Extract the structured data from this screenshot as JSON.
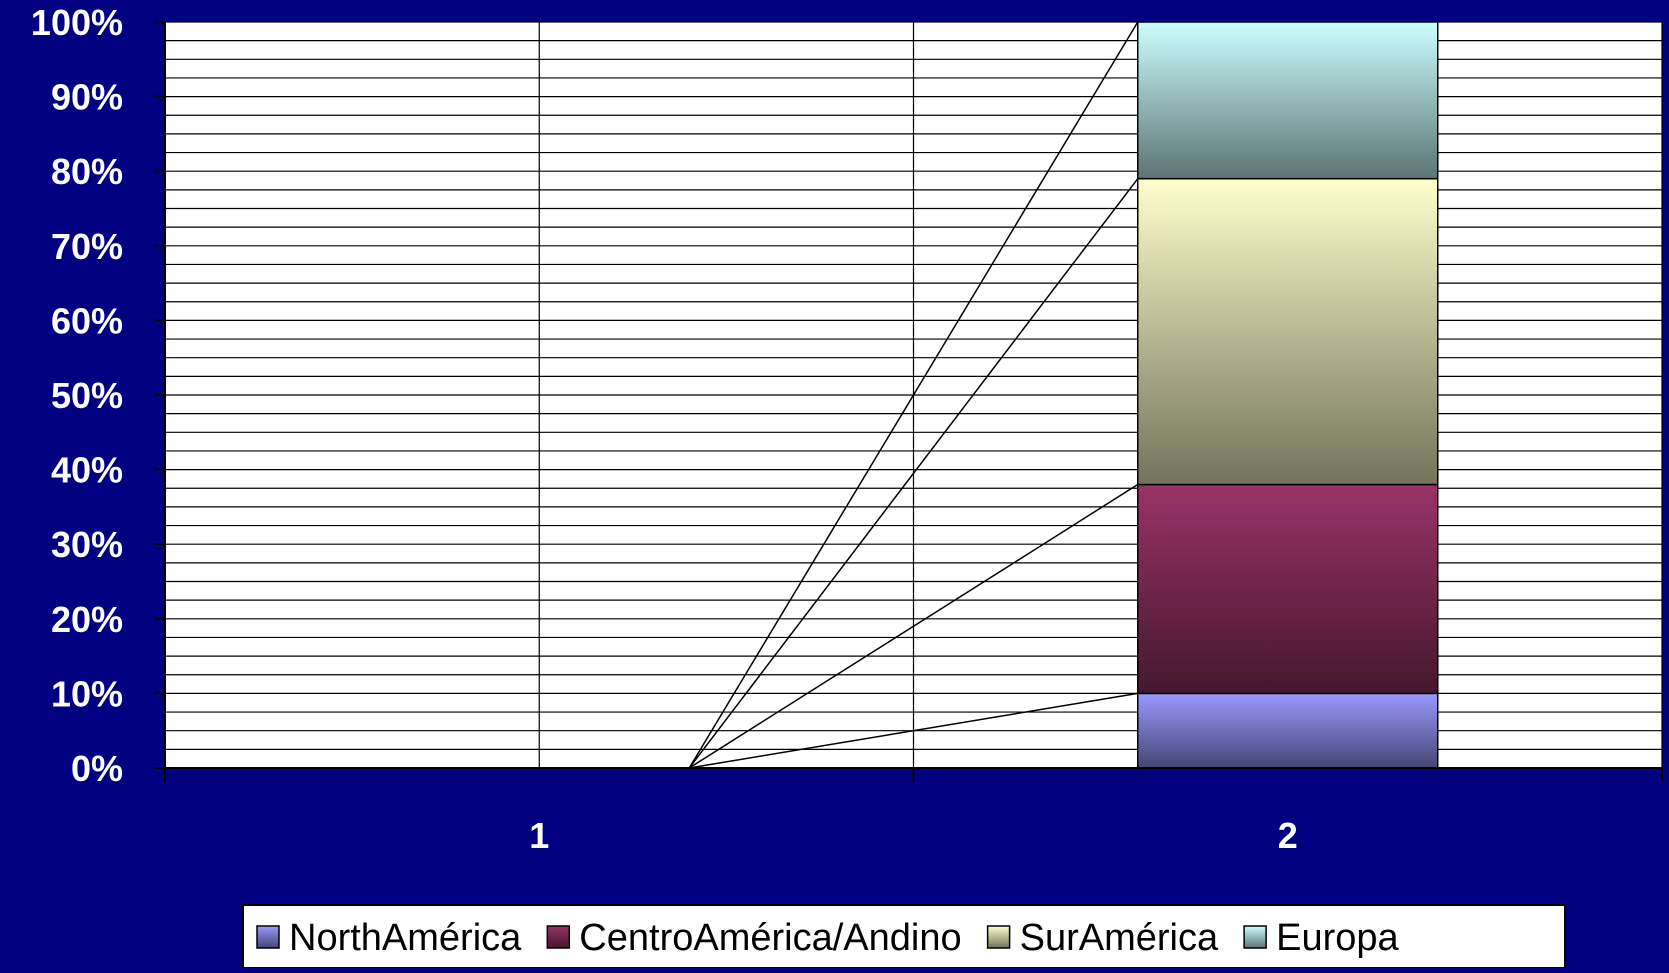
{
  "chart_data": {
    "type": "bar",
    "stacked": true,
    "percent_stacked": true,
    "categories": [
      "1",
      "2"
    ],
    "series": [
      {
        "name": "NorthAmérica",
        "values": [
          0,
          10
        ],
        "color": "#9999ff"
      },
      {
        "name": "CentroAmérica/Andino",
        "values": [
          0,
          28
        ],
        "color": "#993366"
      },
      {
        "name": "SurAmérica",
        "values": [
          0,
          41
        ],
        "color": "#ffffcc"
      },
      {
        "name": "Europa",
        "values": [
          0,
          21
        ],
        "color": "#ccffff"
      }
    ],
    "y_ticks": [
      "0%",
      "10%",
      "20%",
      "30%",
      "40%",
      "50%",
      "60%",
      "70%",
      "80%",
      "90%",
      "100%"
    ],
    "ylim": [
      0,
      100
    ],
    "grid": true,
    "legend_position": "bottom",
    "colors": {
      "background": "#000080",
      "plot_background": "#ffffff",
      "gridline": "#000000"
    }
  }
}
